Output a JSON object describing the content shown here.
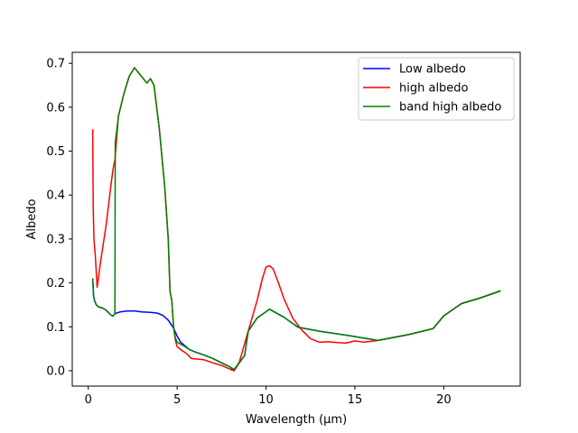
{
  "chart_data": {
    "type": "line",
    "title": "",
    "xlabel": "Wavelength (μm)",
    "ylabel": "Albedo",
    "xlim": [
      -0.9,
      24.3
    ],
    "ylim": [
      -0.035,
      0.725
    ],
    "x_ticks": [
      0,
      5,
      10,
      15,
      20
    ],
    "y_ticks": [
      0.0,
      0.1,
      0.2,
      0.3,
      0.4,
      0.5,
      0.6,
      0.7
    ],
    "y_tick_labels": [
      "0.0",
      "0.1",
      "0.2",
      "0.3",
      "0.4",
      "0.5",
      "0.6",
      "0.7"
    ],
    "grid": false,
    "legend_position": "top-right",
    "series": [
      {
        "name": "Low albedo",
        "color": "#0000ff",
        "points": [
          [
            0.25,
            0.21
          ],
          [
            0.3,
            0.17
          ],
          [
            0.35,
            0.16
          ],
          [
            0.45,
            0.15
          ],
          [
            0.6,
            0.145
          ],
          [
            0.8,
            0.143
          ],
          [
            1.0,
            0.138
          ],
          [
            1.2,
            0.13
          ],
          [
            1.3,
            0.126
          ],
          [
            1.4,
            0.125
          ],
          [
            1.5,
            0.13
          ],
          [
            1.8,
            0.134
          ],
          [
            2.2,
            0.136
          ],
          [
            2.6,
            0.136
          ],
          [
            3.0,
            0.134
          ],
          [
            3.5,
            0.133
          ],
          [
            3.9,
            0.131
          ],
          [
            4.2,
            0.126
          ],
          [
            4.5,
            0.115
          ],
          [
            4.8,
            0.097
          ],
          [
            5.0,
            0.079
          ],
          [
            5.2,
            0.065
          ],
          [
            5.4,
            0.058
          ],
          [
            5.7,
            0.048
          ],
          [
            6.0,
            0.043
          ],
          [
            6.5,
            0.036
          ],
          [
            7.0,
            0.028
          ],
          [
            7.5,
            0.018
          ],
          [
            8.0,
            0.008
          ],
          [
            8.2,
            0.0
          ],
          [
            8.5,
            0.018
          ],
          [
            8.8,
            0.035
          ],
          [
            9.0,
            0.09
          ],
          [
            9.5,
            0.12
          ],
          [
            10.2,
            0.14
          ],
          [
            11.0,
            0.122
          ],
          [
            11.8,
            0.099
          ],
          [
            13.0,
            0.09
          ],
          [
            14.5,
            0.081
          ],
          [
            16.3,
            0.069
          ],
          [
            18.0,
            0.082
          ],
          [
            19.4,
            0.096
          ],
          [
            20.0,
            0.125
          ],
          [
            21.0,
            0.153
          ],
          [
            22.0,
            0.165
          ],
          [
            23.2,
            0.182
          ]
        ]
      },
      {
        "name": "high albedo",
        "color": "#ff0000",
        "points": [
          [
            0.25,
            0.55
          ],
          [
            0.28,
            0.37
          ],
          [
            0.32,
            0.3
          ],
          [
            0.4,
            0.26
          ],
          [
            0.5,
            0.19
          ],
          [
            0.7,
            0.25
          ],
          [
            1.0,
            0.33
          ],
          [
            1.3,
            0.43
          ],
          [
            1.4,
            0.46
          ],
          [
            1.5,
            0.48
          ],
          [
            1.7,
            0.58
          ],
          [
            2.0,
            0.63
          ],
          [
            2.3,
            0.67
          ],
          [
            2.6,
            0.69
          ],
          [
            3.0,
            0.67
          ],
          [
            3.3,
            0.655
          ],
          [
            3.5,
            0.665
          ],
          [
            3.7,
            0.65
          ],
          [
            4.0,
            0.55
          ],
          [
            4.3,
            0.42
          ],
          [
            4.5,
            0.3
          ],
          [
            4.6,
            0.18
          ],
          [
            4.7,
            0.16
          ],
          [
            4.8,
            0.1
          ],
          [
            4.9,
            0.07
          ],
          [
            5.0,
            0.055
          ],
          [
            5.2,
            0.048
          ],
          [
            5.5,
            0.04
          ],
          [
            5.8,
            0.028
          ],
          [
            6.5,
            0.025
          ],
          [
            7.0,
            0.018
          ],
          [
            7.5,
            0.012
          ],
          [
            8.0,
            0.003
          ],
          [
            8.2,
            0.0
          ],
          [
            8.5,
            0.02
          ],
          [
            9.0,
            0.09
          ],
          [
            9.5,
            0.16
          ],
          [
            9.8,
            0.21
          ],
          [
            10.0,
            0.236
          ],
          [
            10.2,
            0.239
          ],
          [
            10.4,
            0.232
          ],
          [
            10.7,
            0.2
          ],
          [
            11.0,
            0.165
          ],
          [
            11.5,
            0.12
          ],
          [
            12.0,
            0.093
          ],
          [
            12.5,
            0.073
          ],
          [
            13.0,
            0.065
          ],
          [
            13.5,
            0.066
          ],
          [
            14.0,
            0.064
          ],
          [
            14.5,
            0.063
          ],
          [
            15.0,
            0.068
          ],
          [
            15.5,
            0.065
          ],
          [
            16.3,
            0.069
          ],
          [
            18.0,
            0.082
          ],
          [
            19.4,
            0.096
          ],
          [
            20.0,
            0.125
          ],
          [
            21.0,
            0.153
          ],
          [
            22.0,
            0.165
          ],
          [
            23.2,
            0.182
          ]
        ]
      },
      {
        "name": "band high albedo",
        "color": "#008000",
        "points": [
          [
            0.25,
            0.21
          ],
          [
            0.3,
            0.17
          ],
          [
            0.35,
            0.16
          ],
          [
            0.45,
            0.15
          ],
          [
            0.6,
            0.145
          ],
          [
            0.8,
            0.143
          ],
          [
            1.0,
            0.138
          ],
          [
            1.2,
            0.13
          ],
          [
            1.3,
            0.126
          ],
          [
            1.4,
            0.125
          ],
          [
            1.5,
            0.13
          ],
          [
            1.52,
            0.52
          ],
          [
            1.7,
            0.58
          ],
          [
            2.0,
            0.63
          ],
          [
            2.3,
            0.67
          ],
          [
            2.6,
            0.69
          ],
          [
            3.0,
            0.67
          ],
          [
            3.3,
            0.655
          ],
          [
            3.5,
            0.665
          ],
          [
            3.7,
            0.65
          ],
          [
            4.0,
            0.55
          ],
          [
            4.3,
            0.42
          ],
          [
            4.5,
            0.3
          ],
          [
            4.6,
            0.18
          ],
          [
            4.7,
            0.16
          ],
          [
            4.8,
            0.1
          ],
          [
            4.9,
            0.075
          ],
          [
            5.0,
            0.065
          ],
          [
            5.4,
            0.056
          ],
          [
            5.7,
            0.048
          ],
          [
            6.0,
            0.043
          ],
          [
            6.5,
            0.036
          ],
          [
            7.0,
            0.028
          ],
          [
            7.5,
            0.018
          ],
          [
            8.0,
            0.008
          ],
          [
            8.2,
            0.003
          ],
          [
            8.5,
            0.018
          ],
          [
            8.8,
            0.035
          ],
          [
            9.0,
            0.09
          ],
          [
            9.5,
            0.12
          ],
          [
            10.2,
            0.14
          ],
          [
            11.0,
            0.122
          ],
          [
            11.8,
            0.099
          ],
          [
            13.0,
            0.09
          ],
          [
            14.5,
            0.081
          ],
          [
            16.3,
            0.069
          ],
          [
            18.0,
            0.082
          ],
          [
            19.4,
            0.096
          ],
          [
            20.0,
            0.125
          ],
          [
            21.0,
            0.153
          ],
          [
            22.0,
            0.165
          ],
          [
            23.2,
            0.182
          ]
        ]
      }
    ]
  }
}
